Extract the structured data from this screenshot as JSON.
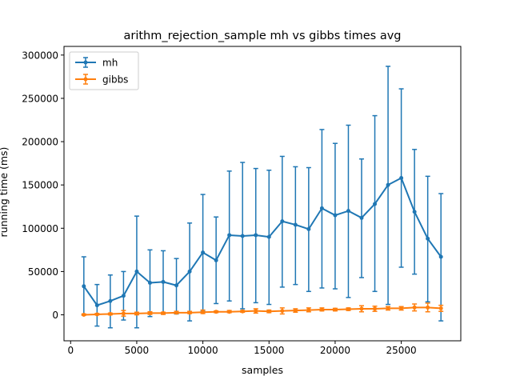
{
  "chart_data": {
    "type": "line",
    "title": "arithm_rejection_sample mh vs gibbs times avg",
    "xlabel": "samples",
    "ylabel": "running time (ms)",
    "xlim": [
      -500,
      29500
    ],
    "ylim": [
      -30000,
      310000
    ],
    "x_ticks": [
      0,
      5000,
      10000,
      15000,
      20000,
      25000
    ],
    "x_tick_labels": [
      "0",
      "5000",
      "10000",
      "15000",
      "20000",
      "25000"
    ],
    "y_ticks": [
      0,
      50000,
      100000,
      150000,
      200000,
      250000,
      300000
    ],
    "y_tick_labels": [
      "0",
      "50000",
      "100000",
      "150000",
      "200000",
      "250000",
      "300000"
    ],
    "grid": false,
    "legend_position": "top-left",
    "x": [
      1000,
      2000,
      3000,
      4000,
      5000,
      6000,
      7000,
      8000,
      9000,
      10000,
      11000,
      12000,
      13000,
      14000,
      15000,
      16000,
      17000,
      18000,
      19000,
      20000,
      21000,
      22000,
      23000,
      24000,
      25000,
      26000,
      27000,
      28000
    ],
    "series": [
      {
        "name": "mh",
        "color": "#1f77b4",
        "values": [
          33000,
          11000,
          16000,
          22000,
          50000,
          37000,
          38000,
          34000,
          50000,
          72000,
          63000,
          92000,
          91000,
          92000,
          90000,
          108000,
          104000,
          99000,
          123000,
          115000,
          120000,
          112000,
          128000,
          150000,
          158000,
          119000,
          88000,
          67000
        ],
        "err_low": [
          0,
          -13000,
          -15000,
          -6000,
          -15000,
          -2000,
          1000,
          1000,
          -7000,
          4000,
          13000,
          16000,
          7000,
          14000,
          12000,
          32000,
          35000,
          27000,
          31000,
          30000,
          20000,
          43000,
          27000,
          12000,
          55000,
          47000,
          15000,
          -7000
        ],
        "err_high": [
          67000,
          35000,
          46000,
          50000,
          114000,
          75000,
          74000,
          65000,
          106000,
          139000,
          113000,
          166000,
          176000,
          169000,
          167000,
          183000,
          171000,
          170000,
          214000,
          198000,
          219000,
          180000,
          230000,
          287000,
          261000,
          191000,
          160000,
          140000
        ]
      },
      {
        "name": "gibbs",
        "color": "#ff7f0e",
        "values": [
          0,
          500,
          1000,
          1500,
          1500,
          2000,
          2000,
          2500,
          2500,
          3000,
          3500,
          3500,
          4000,
          4500,
          4000,
          4500,
          5000,
          5500,
          6000,
          6000,
          6500,
          7000,
          7000,
          7500,
          7500,
          8500,
          8500,
          7500
        ],
        "err_low": [
          -500,
          0,
          0,
          -1500,
          0,
          500,
          500,
          1500,
          1500,
          1500,
          2500,
          2500,
          3000,
          2000,
          2500,
          1000,
          3000,
          3500,
          4500,
          4500,
          5000,
          3500,
          4000,
          5500,
          5500,
          4500,
          3500,
          4000
        ],
        "err_high": [
          1000,
          1500,
          2000,
          5000,
          3000,
          3500,
          3000,
          4000,
          4000,
          5500,
          4500,
          5000,
          5000,
          7000,
          5500,
          8000,
          7000,
          8000,
          8000,
          7500,
          8000,
          10500,
          10000,
          9500,
          9500,
          12500,
          13500,
          11000
        ]
      }
    ]
  }
}
